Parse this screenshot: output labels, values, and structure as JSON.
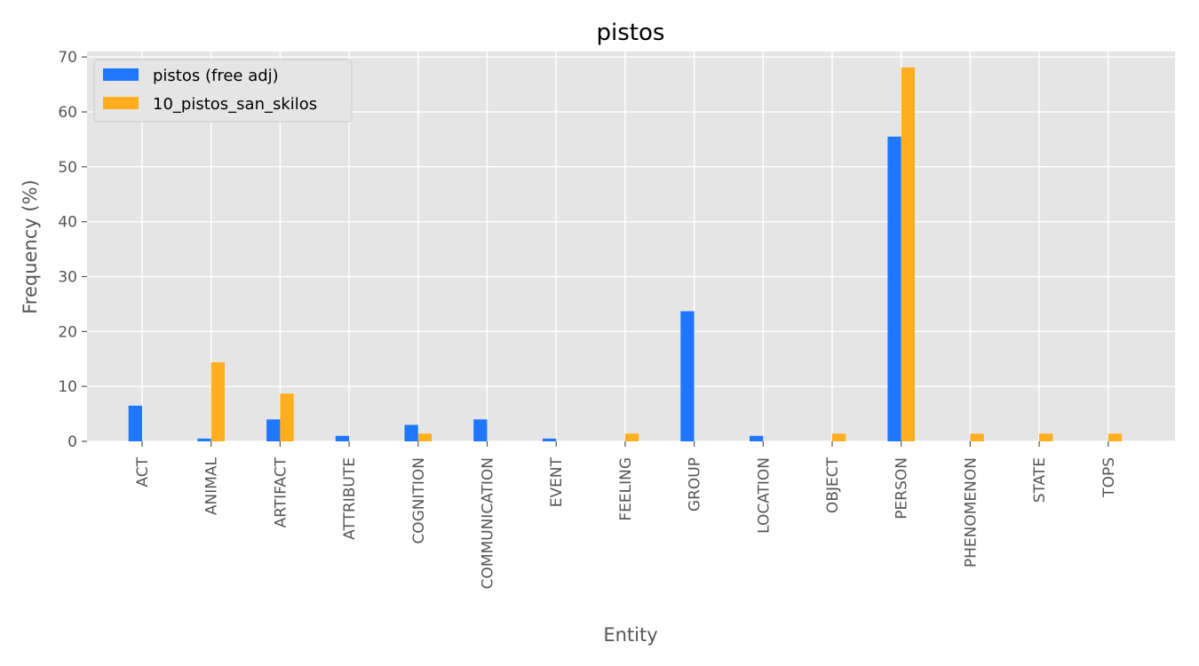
{
  "chart_data": {
    "type": "bar",
    "title": "pistos",
    "xlabel": "Entity",
    "ylabel": "Frequency (%)",
    "ylim": [
      0,
      71
    ],
    "yticks": [
      0,
      10,
      20,
      30,
      40,
      50,
      60,
      70
    ],
    "grid": true,
    "legend_position": "top-left",
    "categories": [
      "ACT",
      "ANIMAL",
      "ARTIFACT",
      "ATTRIBUTE",
      "COGNITION",
      "COMMUNICATION",
      "EVENT",
      "FEELING",
      "GROUP",
      "LOCATION",
      "OBJECT",
      "PERSON",
      "PHENOMENON",
      "STATE",
      "TOPS"
    ],
    "series": [
      {
        "name": "pistos (free adj)",
        "color": "#1f77ff",
        "values": [
          6.5,
          0.5,
          4.0,
          1.0,
          3.0,
          4.0,
          0.5,
          0,
          23.7,
          1.0,
          0,
          55.5,
          0,
          0,
          0
        ]
      },
      {
        "name": "10_pistos_san_skilos",
        "color": "#ffae1f",
        "values": [
          0,
          14.4,
          8.7,
          0,
          1.4,
          0,
          0,
          1.4,
          0,
          0,
          1.4,
          68.1,
          1.4,
          1.4,
          1.4
        ]
      }
    ],
    "colors": {
      "plot_background": "#e5e5e5",
      "grid": "#ffffff",
      "text": "#555555"
    }
  }
}
